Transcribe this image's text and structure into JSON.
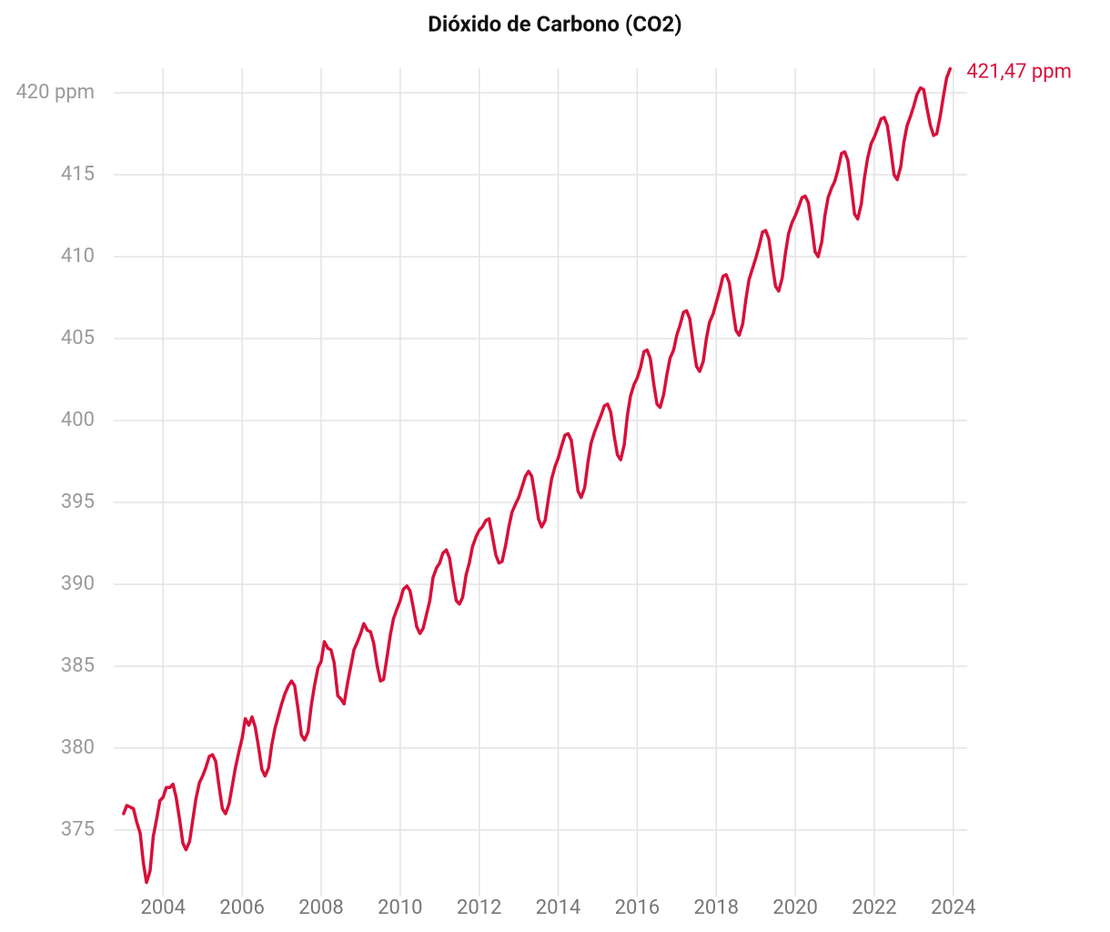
{
  "chart_data": {
    "type": "line",
    "title": "Dióxido de Carbono (CO2)",
    "annotation": "421,47 ppm",
    "xlim": [
      2002.75,
      2024.35
    ],
    "xticks": [
      2004,
      2006,
      2008,
      2010,
      2012,
      2014,
      2016,
      2018,
      2020,
      2022,
      2024
    ],
    "ylim": [
      371.8,
      421.5
    ],
    "yticks": [
      375,
      380,
      385,
      390,
      395,
      400,
      405,
      410,
      415,
      {
        "value": 420,
        "label": "420 ppm"
      }
    ],
    "grid": true,
    "x": [
      2003,
      2003.08,
      2003.17,
      2003.25,
      2003.33,
      2003.42,
      2003.5,
      2003.58,
      2003.67,
      2003.75,
      2003.83,
      2003.92,
      2004,
      2004.08,
      2004.17,
      2004.25,
      2004.33,
      2004.42,
      2004.5,
      2004.58,
      2004.67,
      2004.75,
      2004.83,
      2004.92,
      2005,
      2005.08,
      2005.17,
      2005.25,
      2005.33,
      2005.42,
      2005.5,
      2005.58,
      2005.67,
      2005.75,
      2005.83,
      2005.92,
      2006,
      2006.08,
      2006.17,
      2006.25,
      2006.33,
      2006.42,
      2006.5,
      2006.58,
      2006.67,
      2006.75,
      2006.83,
      2006.92,
      2007,
      2007.08,
      2007.17,
      2007.25,
      2007.33,
      2007.42,
      2007.5,
      2007.58,
      2007.67,
      2007.75,
      2007.83,
      2007.92,
      2008,
      2008.08,
      2008.17,
      2008.25,
      2008.33,
      2008.42,
      2008.5,
      2008.58,
      2008.67,
      2008.75,
      2008.83,
      2008.92,
      2009,
      2009.08,
      2009.17,
      2009.25,
      2009.33,
      2009.42,
      2009.5,
      2009.58,
      2009.67,
      2009.75,
      2009.83,
      2009.92,
      2010,
      2010.08,
      2010.17,
      2010.25,
      2010.33,
      2010.42,
      2010.5,
      2010.58,
      2010.67,
      2010.75,
      2010.83,
      2010.92,
      2011,
      2011.08,
      2011.17,
      2011.25,
      2011.33,
      2011.42,
      2011.5,
      2011.58,
      2011.67,
      2011.75,
      2011.83,
      2011.92,
      2012,
      2012.08,
      2012.17,
      2012.25,
      2012.33,
      2012.42,
      2012.5,
      2012.58,
      2012.67,
      2012.75,
      2012.83,
      2012.92,
      2013,
      2013.08,
      2013.17,
      2013.25,
      2013.33,
      2013.42,
      2013.5,
      2013.58,
      2013.67,
      2013.75,
      2013.83,
      2013.92,
      2014,
      2014.08,
      2014.17,
      2014.25,
      2014.33,
      2014.42,
      2014.5,
      2014.58,
      2014.67,
      2014.75,
      2014.83,
      2014.92,
      2015,
      2015.08,
      2015.17,
      2015.25,
      2015.33,
      2015.42,
      2015.5,
      2015.58,
      2015.67,
      2015.75,
      2015.83,
      2015.92,
      2016,
      2016.08,
      2016.17,
      2016.25,
      2016.33,
      2016.42,
      2016.5,
      2016.58,
      2016.67,
      2016.75,
      2016.83,
      2016.92,
      2017,
      2017.08,
      2017.17,
      2017.25,
      2017.33,
      2017.42,
      2017.5,
      2017.58,
      2017.67,
      2017.75,
      2017.83,
      2017.92,
      2018,
      2018.08,
      2018.17,
      2018.25,
      2018.33,
      2018.42,
      2018.5,
      2018.58,
      2018.67,
      2018.75,
      2018.83,
      2018.92,
      2019,
      2019.08,
      2019.17,
      2019.25,
      2019.33,
      2019.42,
      2019.5,
      2019.58,
      2019.67,
      2019.75,
      2019.83,
      2019.92,
      2020,
      2020.08,
      2020.17,
      2020.25,
      2020.33,
      2020.42,
      2020.5,
      2020.58,
      2020.67,
      2020.75,
      2020.83,
      2020.92,
      2021,
      2021.08,
      2021.17,
      2021.25,
      2021.33,
      2021.42,
      2021.5,
      2021.58,
      2021.67,
      2021.75,
      2021.83,
      2021.92,
      2022,
      2022.08,
      2022.17,
      2022.25,
      2022.33,
      2022.42,
      2022.5,
      2022.58,
      2022.67,
      2022.75,
      2022.83,
      2022.92,
      2023,
      2023.08,
      2023.17,
      2023.25,
      2023.33,
      2023.42,
      2023.5,
      2023.58,
      2023.67,
      2023.75,
      2023.83,
      2023.92
    ],
    "series": [
      {
        "name": "CO2",
        "color": "#d7103a",
        "values": [
          376.0,
          376.5,
          376.4,
          376.3,
          375.5,
          374.8,
          373.0,
          371.8,
          372.5,
          374.6,
          375.6,
          376.8,
          377.0,
          377.6,
          377.6,
          377.8,
          377.0,
          375.6,
          374.2,
          373.8,
          374.3,
          375.6,
          376.9,
          377.9,
          378.3,
          378.8,
          379.5,
          379.6,
          379.2,
          377.6,
          376.3,
          376.0,
          376.6,
          377.7,
          378.8,
          379.8,
          380.6,
          381.8,
          381.4,
          381.9,
          381.3,
          380.0,
          378.7,
          378.3,
          378.8,
          380.2,
          381.2,
          382.0,
          382.7,
          383.3,
          383.8,
          384.1,
          383.8,
          382.3,
          380.8,
          380.5,
          381.0,
          382.6,
          383.8,
          384.9,
          385.3,
          386.5,
          386.1,
          386.0,
          385.2,
          383.2,
          383.0,
          382.7,
          384.0,
          385.0,
          386.0,
          386.5,
          387.0,
          387.6,
          387.2,
          387.1,
          386.4,
          385.0,
          384.1,
          384.2,
          385.6,
          386.9,
          387.9,
          388.5,
          389.0,
          389.7,
          389.9,
          389.6,
          388.6,
          387.4,
          387.0,
          387.3,
          388.2,
          389.0,
          390.4,
          391.0,
          391.3,
          391.9,
          392.1,
          391.6,
          390.3,
          389.0,
          388.8,
          389.2,
          390.6,
          391.3,
          392.3,
          392.9,
          393.3,
          393.5,
          393.9,
          394.0,
          393.0,
          391.8,
          391.3,
          391.4,
          392.4,
          393.5,
          394.4,
          394.9,
          395.3,
          395.9,
          396.6,
          396.9,
          396.6,
          395.3,
          394.0,
          393.5,
          393.9,
          395.2,
          396.4,
          397.2,
          397.7,
          398.4,
          399.1,
          399.2,
          398.8,
          397.2,
          395.7,
          395.3,
          395.9,
          397.4,
          398.6,
          399.3,
          399.8,
          400.3,
          400.9,
          401.0,
          400.5,
          399.0,
          397.9,
          397.6,
          398.5,
          400.3,
          401.5,
          402.2,
          402.6,
          403.2,
          404.2,
          404.3,
          403.8,
          402.2,
          401.0,
          400.8,
          401.6,
          402.8,
          403.8,
          404.3,
          405.2,
          405.8,
          406.6,
          406.7,
          406.2,
          404.6,
          403.3,
          403.0,
          403.6,
          405.0,
          406.0,
          406.5,
          407.2,
          407.9,
          408.8,
          408.9,
          408.4,
          406.8,
          405.5,
          405.2,
          405.9,
          407.4,
          408.6,
          409.3,
          409.9,
          410.6,
          411.5,
          411.6,
          411.1,
          409.5,
          408.2,
          407.9,
          408.7,
          410.2,
          411.4,
          412.1,
          412.5,
          413.0,
          413.6,
          413.7,
          413.3,
          411.8,
          410.3,
          410.0,
          410.9,
          412.5,
          413.6,
          414.2,
          414.6,
          415.3,
          416.3,
          416.4,
          415.9,
          414.2,
          412.6,
          412.3,
          413.2,
          414.8,
          416.0,
          416.9,
          417.3,
          417.8,
          418.4,
          418.5,
          418.0,
          416.5,
          415.0,
          414.7,
          415.5,
          417.0,
          418.0,
          418.6,
          419.2,
          419.9,
          420.3,
          420.2,
          419.1,
          418.0,
          417.4,
          417.5,
          418.6,
          419.8,
          420.9,
          421.47
        ]
      }
    ]
  }
}
